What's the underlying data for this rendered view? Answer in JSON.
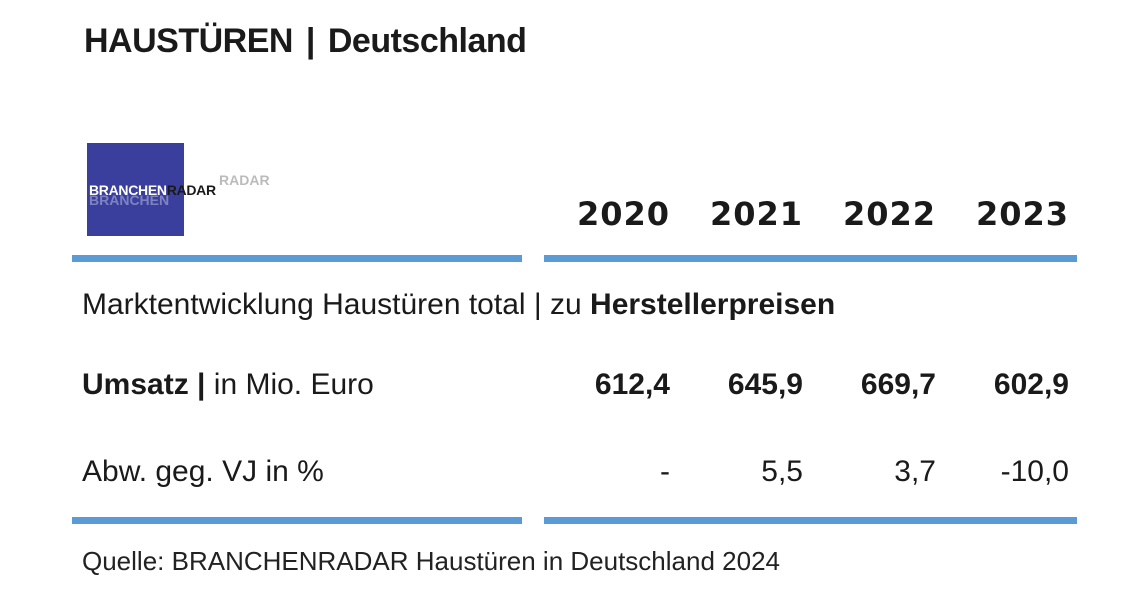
{
  "title": {
    "main": "HAUSTÜREN",
    "separator": "|",
    "region": "Deutschland"
  },
  "logo": {
    "part1": "BRANCHEN",
    "part2": "RADAR"
  },
  "years": [
    "2020",
    "2021",
    "2022",
    "2023"
  ],
  "subtitle": {
    "text": "Marktentwicklung Haustüren total | zu ",
    "bold": "Herstellerpreisen"
  },
  "rows": [
    {
      "label_bold": "Umsatz",
      "label_sep": " | ",
      "label_rest": "in Mio. Euro",
      "values": [
        "612,4",
        "645,9",
        "669,7",
        "602,9"
      ]
    },
    {
      "label_bold": "",
      "label_sep": "",
      "label_rest": "Abw. geg. VJ in %",
      "values": [
        "-",
        "5,5",
        "3,7",
        "-10,0"
      ]
    }
  ],
  "source": "Quelle: BRANCHENRADAR Haustüren in Deutschland 2024",
  "colors": {
    "rule": "#5b9bd5",
    "logo_bg": "#3a3f9e"
  }
}
